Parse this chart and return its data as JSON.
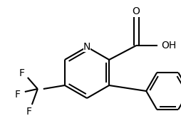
{
  "bg_color": "#ffffff",
  "line_color": "#000000",
  "line_width": 1.5,
  "fig_width": 2.54,
  "fig_height": 1.94,
  "dpi": 100,
  "xlim": [
    0,
    254
  ],
  "ylim": [
    0,
    194
  ]
}
